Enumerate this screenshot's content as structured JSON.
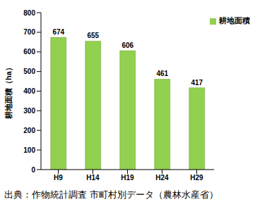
{
  "chart_data": {
    "type": "bar",
    "categories": [
      "H9",
      "H14",
      "H19",
      "H24",
      "H29"
    ],
    "series": [
      {
        "name": "耕地面積",
        "color": "#92d050",
        "values": [
          674,
          655,
          606,
          461,
          417
        ]
      }
    ],
    "y_label": "耕地面積（ha）",
    "ylim": [
      0,
      800
    ],
    "yticks": [
      0,
      100,
      200,
      300,
      400,
      500,
      600,
      700,
      800
    ],
    "grid": false,
    "legend": "upper right",
    "data_labels": true,
    "annotations": [
      "出典：作物統計調査 市町村別データ（農林水産省）"
    ]
  }
}
